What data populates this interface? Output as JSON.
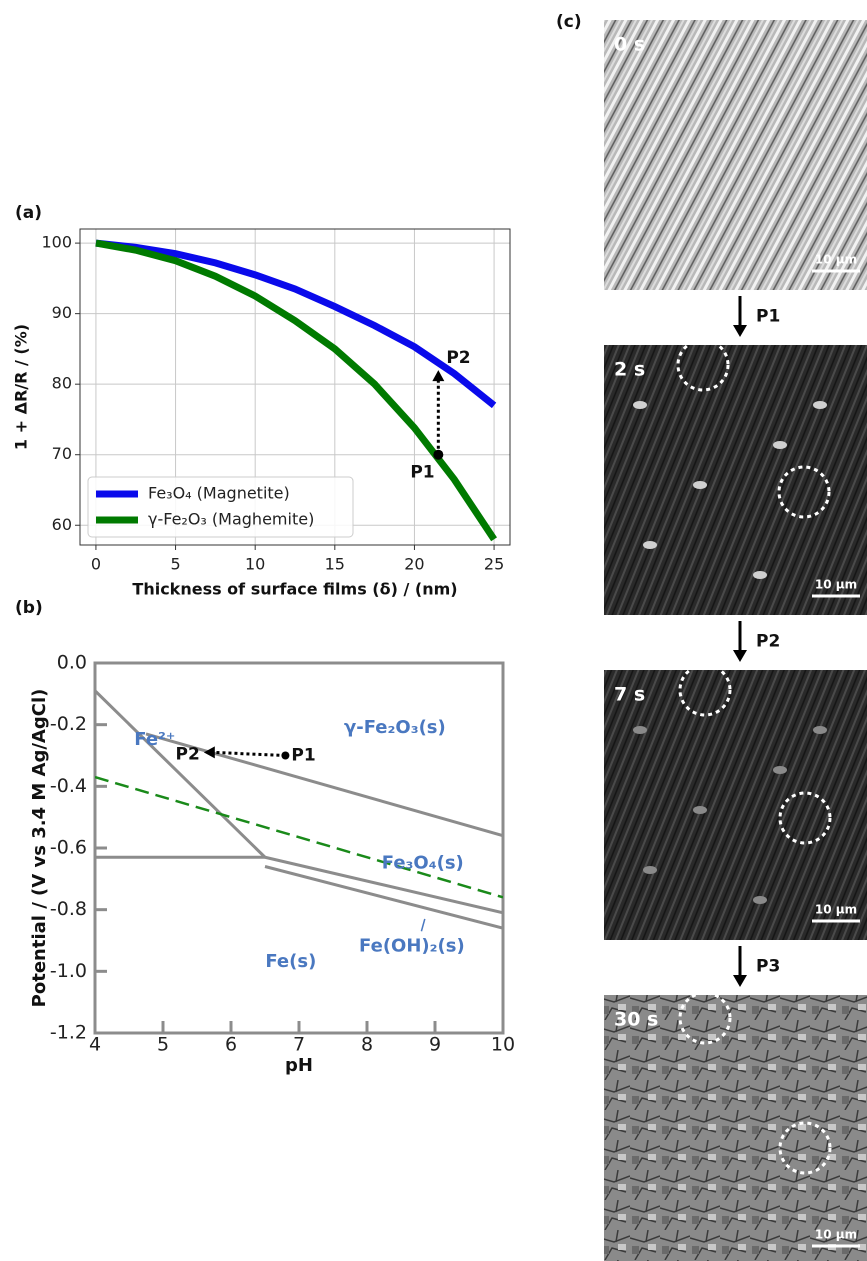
{
  "chart_data": [
    {
      "type": "line",
      "panel_label": "(a)",
      "x_label": "Thickness of surface films (δ) / (nm)",
      "y_label": "1 + ΔR/R / (%)",
      "x": [
        0,
        2.5,
        5,
        7.5,
        10,
        12.5,
        15,
        17.5,
        20,
        22.5,
        25
      ],
      "series": [
        {
          "name": "Fe₃O₄ (Magnetite)",
          "color": "#0a0aeb",
          "values": [
            100,
            99.4,
            98.5,
            97.2,
            95.5,
            93.5,
            91,
            88.3,
            85.3,
            81.5,
            77
          ]
        },
        {
          "name": "γ-Fe₂O₃ (Maghemite)",
          "color": "#007a00",
          "values": [
            100,
            99,
            97.5,
            95.3,
            92.5,
            89,
            85,
            80,
            73.8,
            66.5,
            58
          ]
        }
      ],
      "annotations": [
        {
          "text": "P1",
          "x": 21.5,
          "y": 70
        },
        {
          "text": "P2",
          "x": 21.5,
          "y": 82
        }
      ],
      "xlim": [
        -1,
        26
      ],
      "ylim": [
        57.2,
        102
      ],
      "xticks": [
        0,
        5,
        10,
        15,
        20,
        25
      ],
      "yticks": [
        60,
        70,
        80,
        90,
        100
      ],
      "grid": true,
      "legend": "lower left"
    },
    {
      "type": "phase",
      "panel_label": "(b)",
      "x_label": "pH",
      "y_label": "Potential / (V vs 3.4 M Ag/AgCl)",
      "lines": [
        {
          "x": [
            4,
            6.5
          ],
          "values": [
            -0.09,
            -0.63
          ],
          "color": "#8c8c8c"
        },
        {
          "x": [
            4.75,
            10
          ],
          "values": [
            -0.23,
            -0.56
          ],
          "color": "#8c8c8c"
        },
        {
          "x": [
            4,
            6.5
          ],
          "values": [
            -0.63,
            -0.63
          ],
          "color": "#8c8c8c"
        },
        {
          "x": [
            6.5,
            10
          ],
          "values": [
            -0.63,
            -0.81
          ],
          "color": "#8c8c8c"
        },
        {
          "x": [
            6.5,
            10
          ],
          "values": [
            -0.66,
            -0.86
          ],
          "color": "#8c8c8c"
        },
        {
          "x": [
            4,
            10
          ],
          "values": [
            -0.37,
            -0.76
          ],
          "color": "#1a8a1a",
          "dashed": true
        }
      ],
      "regions": [
        "γ-Fe₂O₃(s)",
        "Fe²⁺",
        "Fe₃O₄(s)",
        "Fe(OH)₂(s)",
        "Fe(s)"
      ],
      "region_color": "#4a78c0",
      "annotations": [
        {
          "text": "P1",
          "x": 6.8,
          "y": -0.3
        },
        {
          "text": "P2",
          "x": 5.6,
          "y": -0.29
        }
      ],
      "xlim": [
        4,
        10
      ],
      "ylim": [
        -1.2,
        0
      ],
      "xticks": [
        4,
        5,
        6,
        7,
        8,
        9,
        10
      ],
      "yticks": [
        {
          "value": 0,
          "label": "0.0"
        },
        -0.2,
        -0.4,
        -0.6,
        -0.8,
        {
          "value": -1,
          "label": "-1.0"
        },
        -1.2
      ],
      "grid": false
    }
  ],
  "micrographs": {
    "panel_label": "(c)",
    "frames": [
      {
        "time": "0 s",
        "scale_bar": "10 µm"
      },
      {
        "time": "2 s",
        "scale_bar": "10 µm"
      },
      {
        "time": "7 s",
        "scale_bar": "10 µm"
      },
      {
        "time": "30 s",
        "scale_bar": "10 µm"
      }
    ],
    "steps": [
      "P1",
      "P2",
      "P3"
    ]
  }
}
